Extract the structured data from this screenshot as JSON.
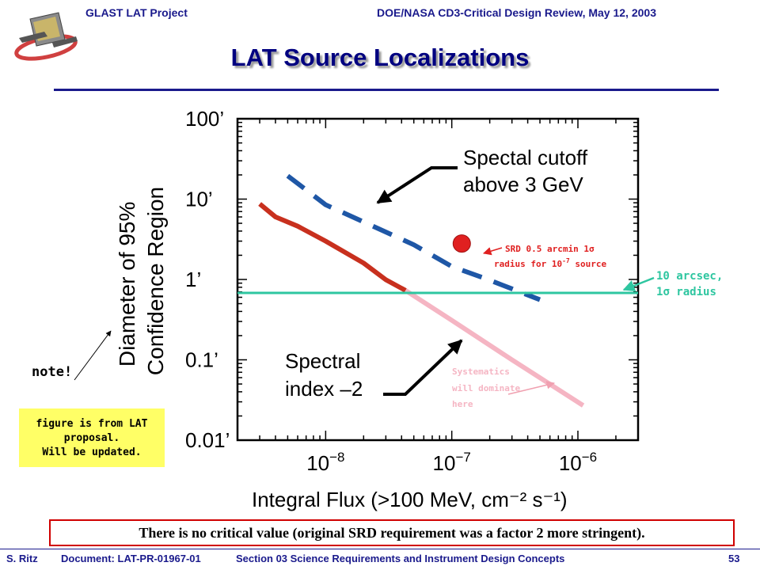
{
  "header": {
    "left": "GLAST LAT Project",
    "right": "DOE/NASA CD3-Critical Design Review, May 12, 2003"
  },
  "slide_title": "LAT Source Localizations",
  "chart_data": {
    "type": "line",
    "xlabel": "Integral Flux  (>100 MeV, cm⁻² s⁻¹)",
    "ylabel": [
      "Diameter of 95%",
      "Confidence Region"
    ],
    "xscale": "log",
    "yscale": "log",
    "xlim": [
      2e-09,
      3e-06
    ],
    "ylim": [
      0.01,
      100
    ],
    "x_ticks": [
      {
        "value": 1e-08,
        "base": "10",
        "exp": "−8"
      },
      {
        "value": 1e-07,
        "base": "10",
        "exp": "−7"
      },
      {
        "value": 1e-06,
        "base": "10",
        "exp": "−6"
      }
    ],
    "y_ticks": [
      {
        "value": 100,
        "label": "100’"
      },
      {
        "value": 10,
        "label": "10’"
      },
      {
        "value": 1,
        "label": "1’"
      },
      {
        "value": 0.1,
        "label": "0.1’"
      },
      {
        "value": 0.01,
        "label": "0.01’"
      }
    ],
    "series": [
      {
        "style": "dashed",
        "color": "#1f57a6",
        "x": [
          5e-09,
          1e-08,
          2e-08,
          5e-08,
          1e-07,
          2e-07,
          5e-07
        ],
        "y": [
          19.5,
          8.5,
          5.2,
          2.7,
          1.45,
          0.98,
          0.56
        ]
      },
      {
        "style": "solid",
        "color": "#c8301e",
        "x": [
          3e-09,
          4e-09,
          6e-09,
          1e-08,
          2e-08,
          3e-08,
          4.3e-08
        ],
        "y": [
          8.7,
          6.0,
          4.6,
          3.0,
          1.6,
          0.99,
          0.73
        ]
      },
      {
        "style": "solid",
        "color": "#f5b5c3",
        "x": [
          4.3e-08,
          1e-07,
          3e-07,
          1.1e-06
        ],
        "y": [
          0.73,
          0.31,
          0.1,
          0.027
        ]
      },
      {
        "style": "solid",
        "color": "#2ec6a0",
        "x": [
          2e-09,
          3e-06
        ],
        "y": [
          0.68,
          0.68
        ]
      }
    ],
    "point": {
      "x": 1.2e-07,
      "y": 2.8,
      "color": "#e02020"
    },
    "annotations": {
      "cutoff": [
        "Spectal cutoff",
        "above 3 GeV"
      ],
      "index": [
        "Spectral",
        "index –2"
      ],
      "srd": {
        "line1": "SRD 0.5 arcmin 1",
        "sym": "σ",
        "line2a": "radius for 10",
        "sup": "-7",
        "line2b": " source"
      },
      "arcsec": {
        "line1": "10 arcsec,",
        "line2a": "1",
        "sym": "σ",
        "line2b": " radius"
      },
      "systematics": [
        "Systematics",
        "will dominate",
        "here"
      ]
    },
    "grid": false,
    "legend": "none"
  },
  "note_label": "note!",
  "note_box": [
    "figure is from LAT",
    "proposal.",
    "Will be updated."
  ],
  "statement": "There is no critical value (original SRD requirement was a factor 2 more stringent).",
  "footer": {
    "author": "S. Ritz",
    "doc": "Document: LAT-PR-01967-01",
    "section": "Section 03 Science Requirements and Instrument Design Concepts",
    "page": "53"
  }
}
